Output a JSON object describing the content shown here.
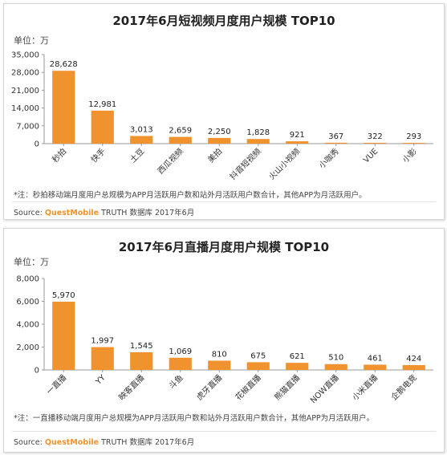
{
  "chart_data": [
    {
      "type": "bar",
      "title": "2017年6月短视频月度用户规模 TOP10",
      "unit_label": "单位：万",
      "categories": [
        "秒拍",
        "快手",
        "土豆",
        "西瓜视频",
        "美拍",
        "抖音短视频",
        "火山小视频",
        "小咖秀",
        "VUE",
        "小影"
      ],
      "values": [
        28628,
        12981,
        3013,
        2659,
        2250,
        1828,
        921,
        367,
        322,
        293
      ],
      "value_labels": [
        "28,628",
        "12,981",
        "3,013",
        "2,659",
        "2,250",
        "1,828",
        "921",
        "367",
        "322",
        "293"
      ],
      "yticks": [
        "0",
        "7,000",
        "14,000",
        "21,000",
        "28,000",
        "35,000"
      ],
      "ytick_values": [
        0,
        7000,
        14000,
        21000,
        28000,
        35000
      ],
      "ylim": [
        0,
        35000
      ],
      "bar_color": "#F0922E",
      "note": "*注：秒拍移动端月度用户总规模为APP月活跃用户数和站外月活跃用户数合计，其他APP为月活跃用户。",
      "source_prefix": "Source:",
      "source_brand": "QuestMobile",
      "source_suffix": "TRUTH 数据库 2017年6月"
    },
    {
      "type": "bar",
      "title": "2017年6月直播月度用户规模 TOP10",
      "unit_label": "单位：万",
      "categories": [
        "一直播",
        "YY",
        "映客直播",
        "斗鱼",
        "虎牙直播",
        "花椒直播",
        "熊猫直播",
        "NOW直播",
        "小米直播",
        "企鹅电竞"
      ],
      "values": [
        5970,
        1997,
        1545,
        1069,
        810,
        675,
        621,
        510,
        461,
        424
      ],
      "value_labels": [
        "5,970",
        "1,997",
        "1,545",
        "1,069",
        "810",
        "675",
        "621",
        "510",
        "461",
        "424"
      ],
      "yticks": [
        "0",
        "2,000",
        "4,000",
        "6,000",
        "8,000"
      ],
      "ytick_values": [
        0,
        2000,
        4000,
        6000,
        8000
      ],
      "ylim": [
        0,
        8000
      ],
      "bar_color": "#F0922E",
      "note": "*注：一直播移动端月度用户总规模为APP月活跃用户数和站外月活跃用户数合计，其他APP为月活跃用户。",
      "source_prefix": "Source:",
      "source_brand": "QuestMobile",
      "source_suffix": "TRUTH 数据库 2017年6月"
    }
  ]
}
